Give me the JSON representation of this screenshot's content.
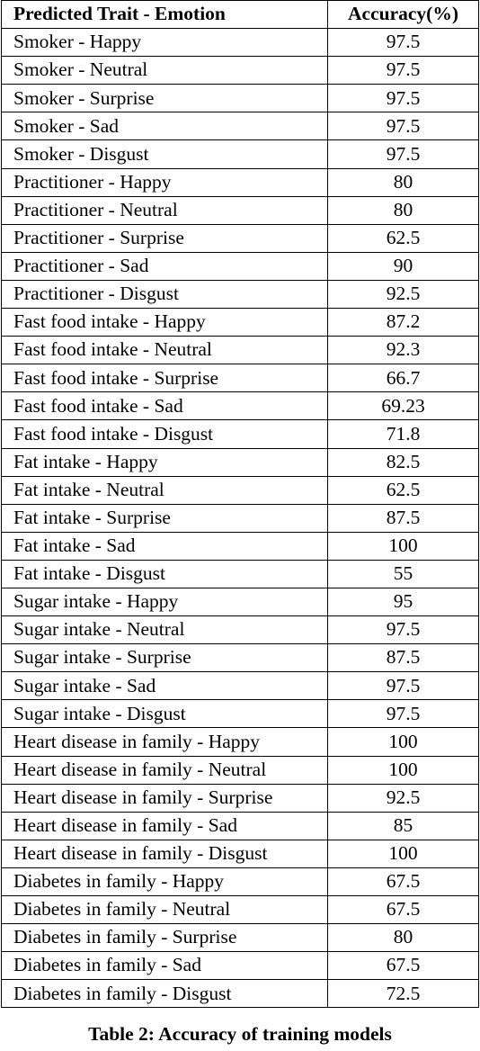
{
  "table": {
    "headers": [
      "Predicted Trait - Emotion",
      "Accuracy(%)"
    ],
    "rows": [
      [
        "Smoker - Happy",
        "97.5"
      ],
      [
        "Smoker - Neutral",
        "97.5"
      ],
      [
        "Smoker - Surprise",
        "97.5"
      ],
      [
        "Smoker - Sad",
        "97.5"
      ],
      [
        "Smoker - Disgust",
        "97.5"
      ],
      [
        "Practitioner - Happy",
        "80"
      ],
      [
        "Practitioner - Neutral",
        "80"
      ],
      [
        "Practitioner - Surprise",
        "62.5"
      ],
      [
        "Practitioner - Sad",
        "90"
      ],
      [
        "Practitioner - Disgust",
        "92.5"
      ],
      [
        "Fast food intake - Happy",
        "87.2"
      ],
      [
        "Fast food intake - Neutral",
        "92.3"
      ],
      [
        "Fast food intake - Surprise",
        "66.7"
      ],
      [
        "Fast food intake - Sad",
        "69.23"
      ],
      [
        "Fast food intake - Disgust",
        "71.8"
      ],
      [
        "Fat intake - Happy",
        "82.5"
      ],
      [
        "Fat intake - Neutral",
        "62.5"
      ],
      [
        "Fat intake - Surprise",
        "87.5"
      ],
      [
        "Fat intake - Sad",
        "100"
      ],
      [
        "Fat intake - Disgust",
        "55"
      ],
      [
        "Sugar intake - Happy",
        "95"
      ],
      [
        "Sugar intake - Neutral",
        "97.5"
      ],
      [
        "Sugar intake - Surprise",
        "87.5"
      ],
      [
        "Sugar intake - Sad",
        "97.5"
      ],
      [
        "Sugar intake - Disgust",
        "97.5"
      ],
      [
        "Heart disease in family - Happy",
        "100"
      ],
      [
        "Heart disease in family - Neutral",
        "100"
      ],
      [
        "Heart disease in family - Surprise",
        "92.5"
      ],
      [
        "Heart disease in family - Sad",
        "85"
      ],
      [
        "Heart disease in family - Disgust",
        "100"
      ],
      [
        "Diabetes in family - Happy",
        "67.5"
      ],
      [
        "Diabetes in family - Neutral",
        "67.5"
      ],
      [
        "Diabetes in family - Surprise",
        "80"
      ],
      [
        "Diabetes in family - Sad",
        "67.5"
      ],
      [
        "Diabetes in family - Disgust",
        "72.5"
      ]
    ]
  },
  "caption": "Table 2: Accuracy of training models"
}
